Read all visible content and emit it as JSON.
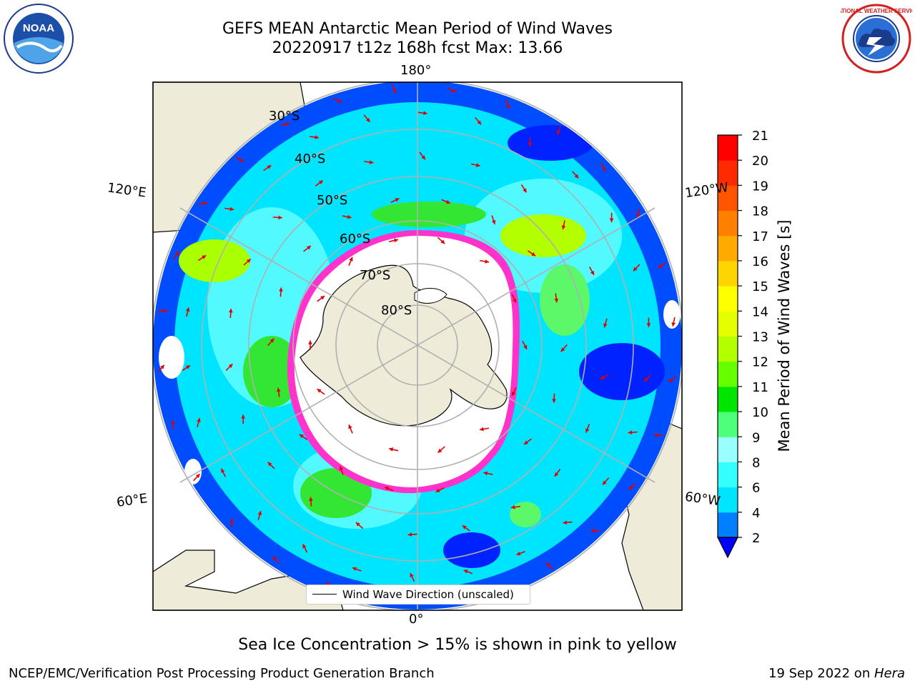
{
  "title": {
    "line1": "GEFS MEAN Antarctic Mean Period of Wind Waves",
    "line2": "20220917 t12z 168h fcst   Max: 13.66"
  },
  "logos": {
    "left": "NOAA",
    "right": "NATIONAL WEATHER SERVICE"
  },
  "map": {
    "projection": "south-polar-stereographic",
    "longitude_labels": {
      "top": "180°",
      "bottom": "0°",
      "upper_left": "120°E",
      "upper_right": "120°W",
      "lower_left": "60°E",
      "lower_right": "60°W"
    },
    "latitude_labels": [
      "30°S",
      "40°S",
      "50°S",
      "60°S",
      "70°S",
      "80°S"
    ],
    "colors": {
      "land": "#efebd9",
      "ocean_low": "#0055ff",
      "ocean_mid": "#00f0ff",
      "ocean_high": "#5df76a",
      "sea_ice_edge": "#ff33cc",
      "arrows": "#e00000"
    }
  },
  "legend": {
    "label": "Wind Wave Direction (unscaled)"
  },
  "colorbar": {
    "title": "Mean Period of Wind Waves [s]",
    "ticks": [
      "2",
      "4",
      "6",
      "8",
      "9",
      "10",
      "11",
      "12",
      "13",
      "14",
      "15",
      "16",
      "17",
      "18",
      "19",
      "20",
      "21"
    ],
    "colors": [
      "#0000ff",
      "#007fff",
      "#00e5ff",
      "#33ffff",
      "#99ffff",
      "#4dff7a",
      "#00e600",
      "#66ff00",
      "#b3ff00",
      "#e6ff00",
      "#ffff00",
      "#ffd500",
      "#ffaa00",
      "#ff8000",
      "#ff5500",
      "#ff2a00",
      "#ff0000"
    ],
    "extend": "min"
  },
  "caption": "Sea Ice Concentration > 15% is shown in pink to yellow",
  "footer": {
    "left": "NCEP/EMC/Verification Post Processing Product Generation Branch",
    "right_prefix": "19 Sep 2022 on ",
    "right_host": "Hera"
  }
}
